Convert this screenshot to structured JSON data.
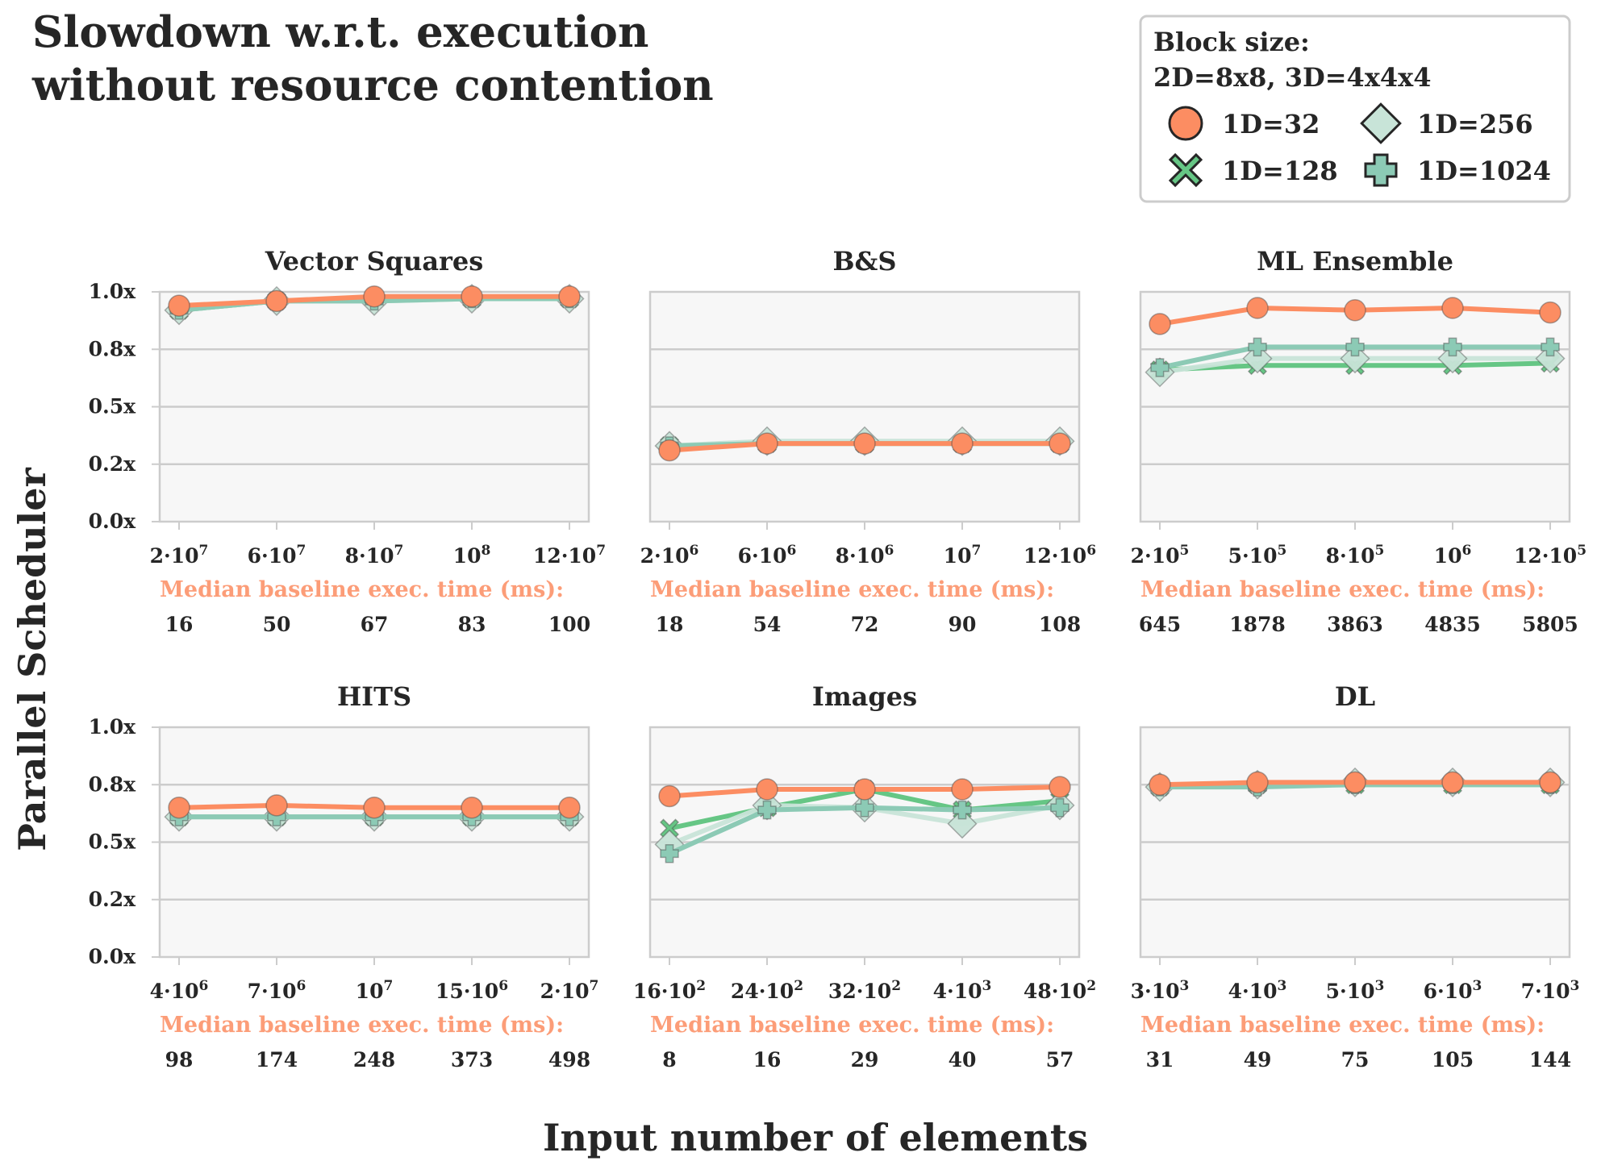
{
  "title": "Slowdown w.r.t. execution without resource contention",
  "title_lines": [
    "Slowdown w.r.t. execution",
    "without resource contention"
  ],
  "ylabel": "Parallel Scheduler",
  "xlabel": "Input number of elements",
  "baseline_caption": "Median baseline exec. time (ms):",
  "legend": {
    "title_lines": [
      "Block size:",
      "2D=8x8, 3D=4x4x4"
    ],
    "entries": [
      {
        "label": "1D=32",
        "marker": "circle",
        "color": "#fc8d62"
      },
      {
        "label": "1D=256",
        "marker": "diamond",
        "color": "#c8e4d8"
      },
      {
        "label": "1D=128",
        "marker": "x",
        "color": "#66c685"
      },
      {
        "label": "1D=1024",
        "marker": "plus",
        "color": "#8ccab5"
      }
    ]
  },
  "colors": {
    "1D=32": "#fc8d62",
    "1D=128": "#66c685",
    "1D=256": "#c8e4d8",
    "1D=1024": "#8ccab5",
    "panel_bg": "#f7f7f7",
    "grid": "#cccccc",
    "baseline_caption": "#fc9d78"
  },
  "chart_data": [
    {
      "type": "line",
      "title": "Vector Squares",
      "ylim": [
        0,
        1
      ],
      "grid": true,
      "yticks": [
        "0.0x",
        "0.2x",
        "0.5x",
        "0.8x",
        "1.0x"
      ],
      "xticks": [
        {
          "base": "2·10",
          "sup": "7"
        },
        {
          "base": "6·10",
          "sup": "7"
        },
        {
          "base": "8·10",
          "sup": "7"
        },
        {
          "base": "10",
          "sup": "8"
        },
        {
          "base": "12·10",
          "sup": "7"
        }
      ],
      "baseline_ms": [
        "16",
        "50",
        "67",
        "83",
        "100"
      ],
      "series": [
        {
          "name": "1D=32",
          "values": [
            0.94,
            0.96,
            0.98,
            0.98,
            0.98
          ]
        },
        {
          "name": "1D=128",
          "values": [
            0.92,
            0.96,
            0.97,
            0.97,
            0.97
          ]
        },
        {
          "name": "1D=256",
          "values": [
            0.92,
            0.96,
            0.96,
            0.97,
            0.97
          ]
        },
        {
          "name": "1D=1024",
          "values": [
            0.92,
            0.96,
            0.96,
            0.97,
            0.97
          ]
        }
      ]
    },
    {
      "type": "line",
      "title": "B&S",
      "ylim": [
        0,
        1
      ],
      "grid": true,
      "yticks": [
        "0.0x",
        "0.2x",
        "0.5x",
        "0.8x",
        "1.0x"
      ],
      "xticks": [
        {
          "base": "2·10",
          "sup": "6"
        },
        {
          "base": "6·10",
          "sup": "6"
        },
        {
          "base": "8·10",
          "sup": "6"
        },
        {
          "base": "10",
          "sup": "7"
        },
        {
          "base": "12·10",
          "sup": "6"
        }
      ],
      "baseline_ms": [
        "18",
        "54",
        "72",
        "90",
        "108"
      ],
      "series": [
        {
          "name": "1D=32",
          "values": [
            0.31,
            0.34,
            0.34,
            0.34,
            0.34
          ]
        },
        {
          "name": "1D=128",
          "values": [
            0.33,
            0.34,
            0.34,
            0.34,
            0.34
          ]
        },
        {
          "name": "1D=256",
          "values": [
            0.33,
            0.35,
            0.35,
            0.35,
            0.35
          ]
        },
        {
          "name": "1D=1024",
          "values": [
            0.33,
            0.34,
            0.34,
            0.34,
            0.34
          ]
        }
      ]
    },
    {
      "type": "line",
      "title": "ML Ensemble",
      "ylim": [
        0,
        1
      ],
      "grid": true,
      "yticks": [
        "0.0x",
        "0.2x",
        "0.5x",
        "0.8x",
        "1.0x"
      ],
      "xticks": [
        {
          "base": "2·10",
          "sup": "5"
        },
        {
          "base": "5·10",
          "sup": "5"
        },
        {
          "base": "8·10",
          "sup": "5"
        },
        {
          "base": "10",
          "sup": "6"
        },
        {
          "base": "12·10",
          "sup": "5"
        }
      ],
      "baseline_ms": [
        "645",
        "1878",
        "3863",
        "4835",
        "5805"
      ],
      "series": [
        {
          "name": "1D=32",
          "values": [
            0.86,
            0.93,
            0.92,
            0.93,
            0.91
          ]
        },
        {
          "name": "1D=128",
          "values": [
            0.66,
            0.68,
            0.68,
            0.68,
            0.69
          ]
        },
        {
          "name": "1D=256",
          "values": [
            0.65,
            0.71,
            0.71,
            0.71,
            0.71
          ]
        },
        {
          "name": "1D=1024",
          "values": [
            0.67,
            0.76,
            0.76,
            0.76,
            0.76
          ]
        }
      ]
    },
    {
      "type": "line",
      "title": "HITS",
      "ylim": [
        0,
        1
      ],
      "grid": true,
      "yticks": [
        "0.0x",
        "0.2x",
        "0.5x",
        "0.8x",
        "1.0x"
      ],
      "xticks": [
        {
          "base": "4·10",
          "sup": "6"
        },
        {
          "base": "7·10",
          "sup": "6"
        },
        {
          "base": "10",
          "sup": "7"
        },
        {
          "base": "15·10",
          "sup": "6"
        },
        {
          "base": "2·10",
          "sup": "7"
        }
      ],
      "baseline_ms": [
        "98",
        "174",
        "248",
        "373",
        "498"
      ],
      "series": [
        {
          "name": "1D=32",
          "values": [
            0.65,
            0.66,
            0.65,
            0.65,
            0.65
          ]
        },
        {
          "name": "1D=128",
          "values": [
            0.61,
            0.61,
            0.61,
            0.61,
            0.61
          ]
        },
        {
          "name": "1D=256",
          "values": [
            0.61,
            0.61,
            0.61,
            0.61,
            0.61
          ]
        },
        {
          "name": "1D=1024",
          "values": [
            0.61,
            0.61,
            0.61,
            0.61,
            0.61
          ]
        }
      ]
    },
    {
      "type": "line",
      "title": "Images",
      "ylim": [
        0,
        1
      ],
      "grid": true,
      "yticks": [
        "0.0x",
        "0.2x",
        "0.5x",
        "0.8x",
        "1.0x"
      ],
      "xticks": [
        {
          "base": "16·10",
          "sup": "2"
        },
        {
          "base": "24·10",
          "sup": "2"
        },
        {
          "base": "32·10",
          "sup": "2"
        },
        {
          "base": "4·10",
          "sup": "3"
        },
        {
          "base": "48·10",
          "sup": "2"
        }
      ],
      "baseline_ms": [
        "8",
        "16",
        "29",
        "40",
        "57"
      ],
      "series": [
        {
          "name": "1D=32",
          "values": [
            0.7,
            0.73,
            0.73,
            0.73,
            0.74
          ]
        },
        {
          "name": "1D=128",
          "values": [
            0.56,
            0.65,
            0.73,
            0.64,
            0.68
          ]
        },
        {
          "name": "1D=256",
          "values": [
            0.49,
            0.66,
            0.65,
            0.58,
            0.66
          ]
        },
        {
          "name": "1D=1024",
          "values": [
            0.45,
            0.64,
            0.65,
            0.64,
            0.65
          ]
        }
      ]
    },
    {
      "type": "line",
      "title": "DL",
      "ylim": [
        0,
        1
      ],
      "grid": true,
      "yticks": [
        "0.0x",
        "0.2x",
        "0.5x",
        "0.8x",
        "1.0x"
      ],
      "xticks": [
        {
          "base": "3·10",
          "sup": "3"
        },
        {
          "base": "4·10",
          "sup": "3"
        },
        {
          "base": "5·10",
          "sup": "3"
        },
        {
          "base": "6·10",
          "sup": "3"
        },
        {
          "base": "7·10",
          "sup": "3"
        }
      ],
      "baseline_ms": [
        "31",
        "49",
        "75",
        "105",
        "144"
      ],
      "series": [
        {
          "name": "1D=32",
          "values": [
            0.75,
            0.76,
            0.76,
            0.76,
            0.76
          ]
        },
        {
          "name": "1D=128",
          "values": [
            0.74,
            0.75,
            0.75,
            0.75,
            0.75
          ]
        },
        {
          "name": "1D=256",
          "values": [
            0.74,
            0.75,
            0.76,
            0.76,
            0.76
          ]
        },
        {
          "name": "1D=1024",
          "values": [
            0.74,
            0.74,
            0.75,
            0.75,
            0.75
          ]
        }
      ]
    }
  ]
}
